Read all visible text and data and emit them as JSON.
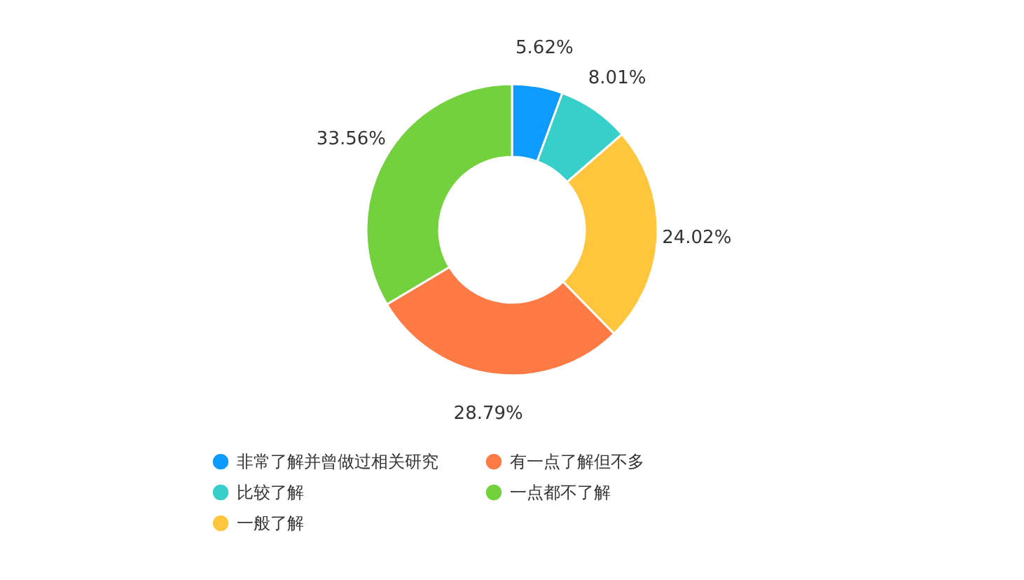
{
  "chart_data": {
    "type": "donut",
    "categories": [
      "非常了解并曾做过相关研究",
      "比较了解",
      "一般了解",
      "有一点了解但不多",
      "一点都不了解"
    ],
    "values": [
      5.62,
      8.01,
      24.02,
      28.79,
      33.56
    ],
    "value_labels": [
      "5.62%",
      "8.01%",
      "24.02%",
      "28.79%",
      "33.56%"
    ],
    "colors": [
      "#0e9aff",
      "#36cfc9",
      "#ffc53d",
      "#ff7a45",
      "#73d13d"
    ],
    "legend": "bottom"
  }
}
